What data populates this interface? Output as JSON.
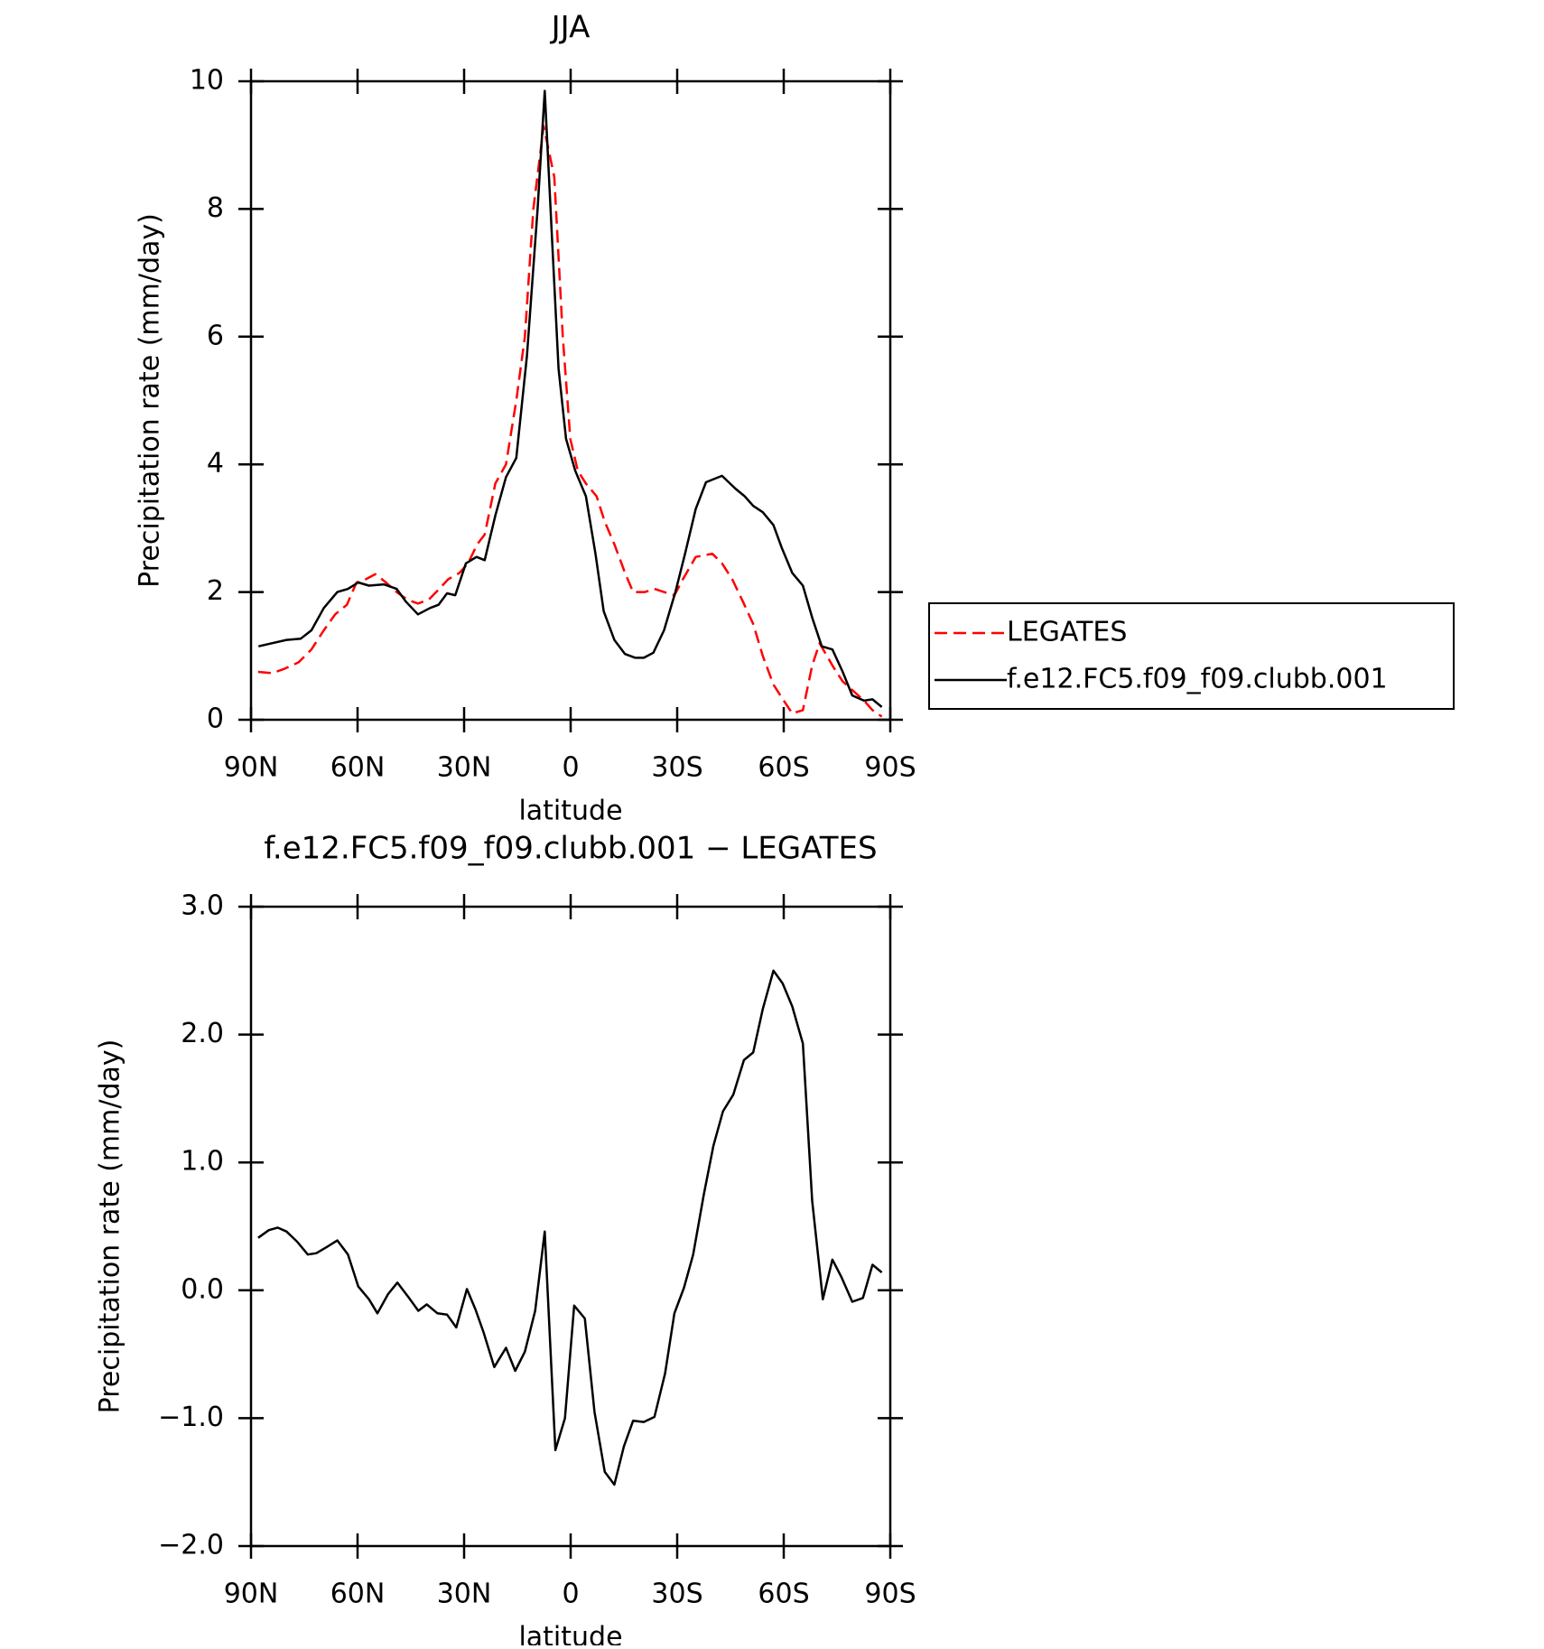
{
  "chart_data": [
    {
      "type": "line",
      "title": "JJA",
      "xlabel": "latitude",
      "ylabel": "Precipitation rate (mm/day)",
      "xlim": [
        90,
        -90
      ],
      "xticks": [
        {
          "value": 90,
          "label": "90N"
        },
        {
          "value": 60,
          "label": "60N"
        },
        {
          "value": 30,
          "label": "30N"
        },
        0,
        {
          "value": -30,
          "label": "30S"
        },
        {
          "value": -60,
          "label": "60S"
        },
        {
          "value": -90,
          "label": "90S"
        }
      ],
      "ylim": [
        0,
        10
      ],
      "yticks": [
        0,
        2,
        4,
        6,
        8,
        10
      ],
      "legend": "right",
      "series": [
        {
          "name": "LEGATES",
          "color": "#ff0000",
          "dash": "dashed",
          "x": [
            88,
            84,
            80.5,
            76.6,
            73,
            69.5,
            66.3,
            63,
            60.3,
            57.7,
            55,
            52,
            49,
            46,
            43,
            40,
            37,
            34.5,
            31.3,
            28.9,
            26.3,
            24.2,
            21.2,
            18.2,
            15.3,
            12.9,
            10.5,
            7.6,
            4.6,
            2.2,
            0.1,
            -2,
            -4.3,
            -7.3,
            -9.6,
            -12.3,
            -15.3,
            -17.6,
            -20.9,
            -23.6,
            -26.3,
            -29.2,
            -31.6,
            -35.2,
            -39.9,
            -42.6,
            -45.5,
            -48.5,
            -51.4,
            -54.1,
            -57.1,
            -60,
            -62.4,
            -65.4,
            -68,
            -70.1,
            -73.7,
            -76.6,
            -79.6,
            -82.6,
            -85,
            -87.6
          ],
          "values": [
            0.75,
            0.73,
            0.8,
            0.9,
            1.1,
            1.4,
            1.65,
            1.8,
            2.15,
            2.2,
            2.28,
            2.15,
            2.0,
            1.88,
            1.82,
            1.88,
            2.05,
            2.2,
            2.3,
            2.45,
            2.75,
            2.9,
            3.7,
            4.0,
            5.0,
            6.0,
            8.0,
            9.3,
            8.5,
            6.0,
            4.4,
            3.9,
            3.7,
            3.5,
            3.1,
            2.75,
            2.3,
            2.0,
            2.0,
            2.05,
            2.0,
            1.95,
            2.2,
            2.55,
            2.6,
            2.45,
            2.2,
            1.85,
            1.5,
            1.0,
            0.55,
            0.3,
            0.1,
            0.15,
            0.85,
            1.2,
            0.85,
            0.6,
            0.45,
            0.3,
            0.15,
            0.05
          ]
        },
        {
          "name": "f.e12.FC5.f09_f09.clubb.001",
          "color": "#000000",
          "x": [
            87.9,
            84,
            80,
            76,
            73,
            69.5,
            65.7,
            62.7,
            59.8,
            56.8,
            52.6,
            49,
            46.4,
            43,
            39.6,
            37.2,
            34.8,
            32.5,
            29.5,
            26.5,
            24.2,
            21.2,
            18.2,
            15.3,
            12.3,
            9.3,
            7.3,
            5.2,
            3.4,
            1.3,
            -1.3,
            -4.3,
            -7,
            -9.3,
            -12.3,
            -15.3,
            -18.2,
            -20.6,
            -23.3,
            -26.3,
            -29.5,
            -32.2,
            -35.2,
            -38.1,
            -42.6,
            -46.4,
            -49,
            -51.4,
            -54.1,
            -57.1,
            -59.4,
            -62.4,
            -65.4,
            -68,
            -70.7,
            -73.7,
            -76.6,
            -79.3,
            -82.6,
            -85,
            -87.6
          ],
          "values": [
            1.15,
            1.2,
            1.25,
            1.27,
            1.4,
            1.75,
            2.0,
            2.05,
            2.15,
            2.1,
            2.12,
            2.05,
            1.85,
            1.65,
            1.75,
            1.8,
            1.98,
            1.95,
            2.45,
            2.55,
            2.5,
            3.2,
            3.8,
            4.1,
            5.7,
            8.0,
            9.85,
            7.5,
            5.5,
            4.4,
            3.9,
            3.5,
            2.6,
            1.7,
            1.25,
            1.03,
            0.97,
            0.97,
            1.05,
            1.4,
            2.0,
            2.6,
            3.3,
            3.72,
            3.82,
            3.62,
            3.5,
            3.35,
            3.25,
            3.05,
            2.7,
            2.3,
            2.1,
            1.6,
            1.15,
            1.1,
            0.75,
            0.38,
            0.3,
            0.32,
            0.2
          ]
        }
      ]
    },
    {
      "type": "line",
      "title": "f.e12.FC5.f09_f09.clubb.001 − LEGATES",
      "xlabel": "latitude",
      "ylabel": "Precipitation rate (mm/day)",
      "xlim": [
        90,
        -90
      ],
      "xticks": [
        {
          "value": 90,
          "label": "90N"
        },
        {
          "value": 60,
          "label": "60N"
        },
        {
          "value": 30,
          "label": "30N"
        },
        0,
        {
          "value": -30,
          "label": "30S"
        },
        {
          "value": -60,
          "label": "60S"
        },
        {
          "value": -90,
          "label": "90S"
        }
      ],
      "ylim": [
        -2,
        3
      ],
      "yticks": [
        {
          "value": -2,
          "label": "−2.0"
        },
        {
          "value": -1,
          "label": "−1.0"
        },
        {
          "value": 0,
          "label": "0.0"
        },
        {
          "value": 1,
          "label": "1.0"
        },
        {
          "value": 2,
          "label": "2.0"
        },
        {
          "value": 3,
          "label": "3.0"
        }
      ],
      "series": [
        {
          "color": "#000000",
          "x": [
            88,
            85,
            82.5,
            80,
            77,
            74,
            71.6,
            68.6,
            65.7,
            62.7,
            59.8,
            56.8,
            54.4,
            51.4,
            48.8,
            45.5,
            42.9,
            40.5,
            37.5,
            34.8,
            32.2,
            29.2,
            26.8,
            24.5,
            21.5,
            18.2,
            15.6,
            12.9,
            10,
            7.3,
            4.3,
            1.6,
            -1,
            -4,
            -6.7,
            -9.6,
            -12.3,
            -15,
            -17.6,
            -20.6,
            -23.6,
            -26.6,
            -29.2,
            -31.9,
            -34.5,
            -37.5,
            -40.2,
            -42.9,
            -45.8,
            -48.8,
            -51.4,
            -54.1,
            -57.1,
            -59.7,
            -62.4,
            -65.4,
            -68,
            -71,
            -73.7,
            -76.3,
            -79.3,
            -82.3,
            -85,
            -87.6
          ],
          "values": [
            0.41,
            0.47,
            0.49,
            0.46,
            0.38,
            0.28,
            0.29,
            0.34,
            0.39,
            0.28,
            0.03,
            -0.07,
            -0.18,
            -0.03,
            0.06,
            -0.06,
            -0.16,
            -0.11,
            -0.18,
            -0.19,
            -0.29,
            0.01,
            -0.15,
            -0.33,
            -0.6,
            -0.45,
            -0.63,
            -0.48,
            -0.16,
            0.46,
            -1.25,
            -1.0,
            -0.12,
            -0.22,
            -0.95,
            -1.42,
            -1.52,
            -1.22,
            -1.02,
            -1.03,
            -0.99,
            -0.65,
            -0.18,
            0.02,
            0.28,
            0.75,
            1.13,
            1.4,
            1.53,
            1.8,
            1.86,
            2.2,
            2.5,
            2.4,
            2.22,
            1.93,
            0.7,
            -0.07,
            0.24,
            0.1,
            -0.09,
            -0.06,
            0.2,
            0.14
          ]
        }
      ]
    }
  ]
}
